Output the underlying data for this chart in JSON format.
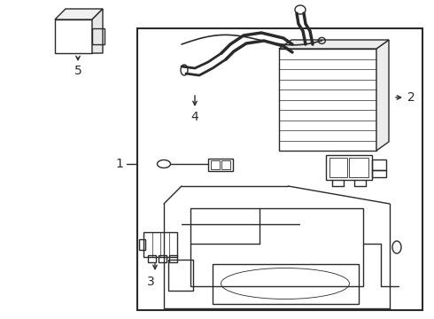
{
  "bg_color": "#ffffff",
  "line_color": "#2a2a2a",
  "lw": 1.0,
  "label_fontsize": 10,
  "fig_w": 4.9,
  "fig_h": 3.6
}
